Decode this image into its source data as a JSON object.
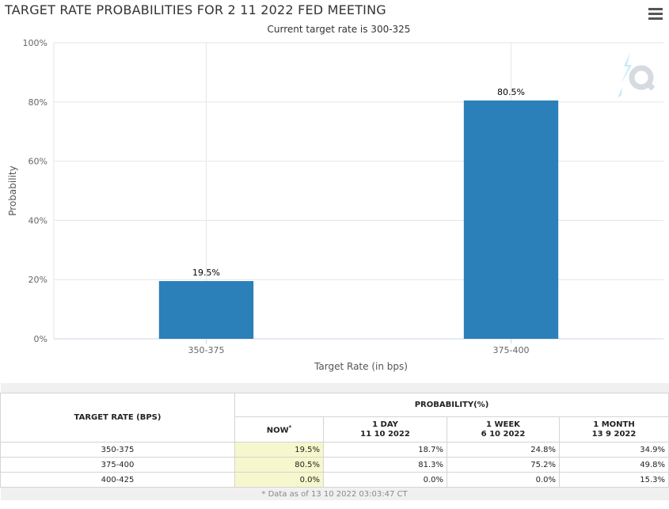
{
  "header": {
    "title": "TARGET RATE PROBABILITIES FOR 2 11 2022 FED MEETING",
    "menu_icon": "hamburger-menu-icon",
    "logo_icon": "quikstrike-logo-icon"
  },
  "chart_data": {
    "type": "bar",
    "title": "TARGET RATE PROBABILITIES FOR 2 11 2022 FED MEETING",
    "subtitle": "Current target rate is 300-325",
    "xlabel": "Target Rate (in bps)",
    "ylabel": "Probability",
    "categories": [
      "350-375",
      "375-400"
    ],
    "values": [
      19.5,
      80.5
    ],
    "data_labels": [
      "19.5%",
      "80.5%"
    ],
    "ylim": [
      0,
      100
    ],
    "yticks": [
      "0%",
      "20%",
      "40%",
      "60%",
      "80%",
      "100%"
    ],
    "ytick_values": [
      0,
      20,
      40,
      60,
      80,
      100
    ],
    "bar_color": "#2b80b9",
    "grid": true
  },
  "table": {
    "col_rate": "TARGET RATE (BPS)",
    "col_prob": "PROBABILITY(%)",
    "subcols": [
      {
        "line1": "NOW",
        "line2": ""
      },
      {
        "line1": "1 DAY",
        "line2": "11 10 2022"
      },
      {
        "line1": "1 WEEK",
        "line2": "6 10 2022"
      },
      {
        "line1": "1 MONTH",
        "line2": "13 9 2022"
      }
    ],
    "now_marker": "*",
    "rows": [
      {
        "rate": "350-375",
        "now": "19.5%",
        "day": "18.7%",
        "week": "24.8%",
        "month": "34.9%"
      },
      {
        "rate": "375-400",
        "now": "80.5%",
        "day": "81.3%",
        "week": "75.2%",
        "month": "49.8%"
      },
      {
        "rate": "400-425",
        "now": "0.0%",
        "day": "0.0%",
        "week": "0.0%",
        "month": "15.3%"
      }
    ],
    "footnote": "* Data as of 13 10 2022 03:03:47 CT",
    "now_highlight": "#f7f7cd"
  }
}
